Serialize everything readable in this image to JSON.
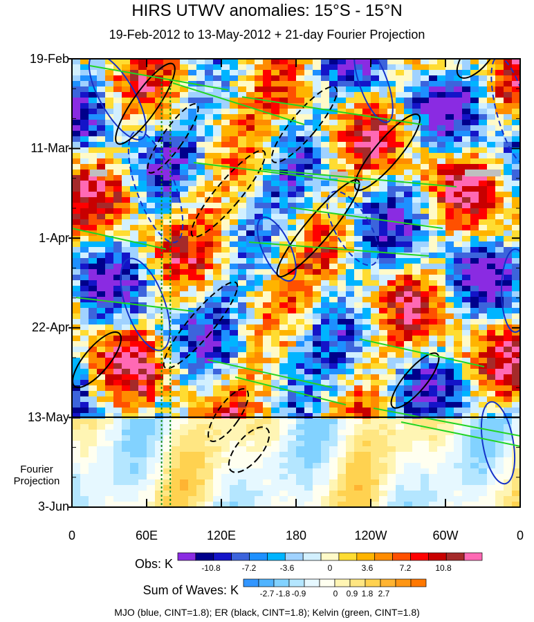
{
  "chart_data": {
    "type": "heatmap",
    "title": "HIRS UTWV anomalies: 15°S - 15°N",
    "subtitle": "19-Feb-2012 to 13-May-2012 + 21-day Fourier Projection",
    "x_tick_labels": [
      "0",
      "60E",
      "120E",
      "180",
      "120W",
      "60W",
      "0"
    ],
    "x_range_deg_east": [
      0,
      360
    ],
    "y_tick_labels": [
      "19-Feb",
      "11-Mar",
      "1-Apr",
      "22-Apr",
      "13-May",
      "3-Jun"
    ],
    "y_range": [
      "19-Feb-2012",
      "3-Jun-2012"
    ],
    "observation_end": "13-May",
    "projection_label": "Fourier Projection",
    "obs_colorbar": {
      "label": "Obs: K",
      "tick_labels": [
        "-10.8",
        "-7.2",
        "-3.6",
        "0",
        "3.6",
        "7.2",
        "10.8"
      ],
      "colors": [
        "#8a2be2",
        "#00008b",
        "#1414c8",
        "#3c64dc",
        "#1e90ff",
        "#00b4ff",
        "#a0d2ff",
        "#d2f0ff",
        "#fffac8",
        "#ffdc32",
        "#ffb400",
        "#ff8c00",
        "#ff5000",
        "#ff0000",
        "#c80000",
        "#a52a2a",
        "#ff69b4"
      ]
    },
    "waves_colorbar": {
      "label": "Sum of Waves: K",
      "tick_labels": [
        "-2.7",
        "-1.8",
        "-0.9",
        "0",
        "0.9",
        "1.8",
        "2.7"
      ],
      "colors": [
        "#3296ff",
        "#50b4ff",
        "#82d2ff",
        "#b4e6ff",
        "#e6f8ff",
        "#fffff0",
        "#fff5b4",
        "#ffe682",
        "#ffd250",
        "#ffb432",
        "#ff9614",
        "#ff7800"
      ]
    },
    "contours": [
      {
        "name": "MJO",
        "color": "blue",
        "cint": 1.8
      },
      {
        "name": "ER",
        "color": "black",
        "cint": 1.8
      },
      {
        "name": "Kelvin",
        "color": "green",
        "cint": 1.8
      }
    ],
    "vertical_markers_deg_east": [
      72,
      79
    ],
    "footnote": "MJO (blue, CINT=1.8); ER (black, CINT=1.8); Kelvin (green, CINT=1.8)"
  }
}
